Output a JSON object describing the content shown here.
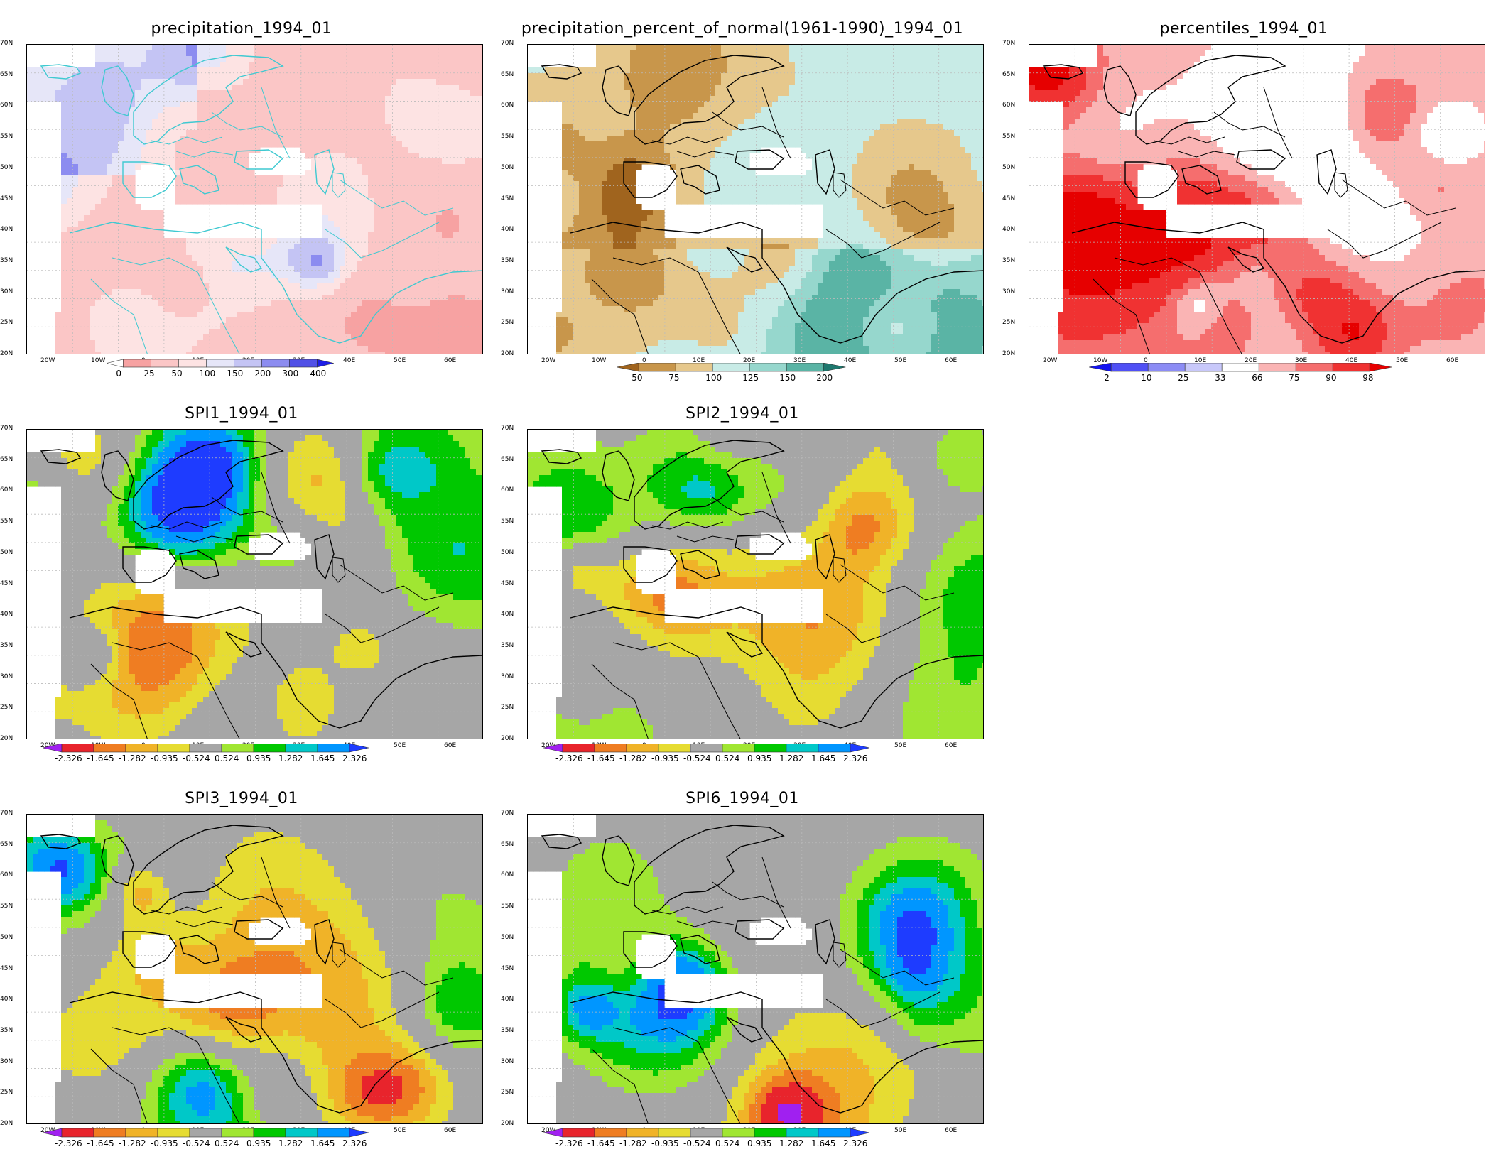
{
  "lat_labels": [
    "70N",
    "65N",
    "60N",
    "55N",
    "50N",
    "45N",
    "40N",
    "35N",
    "30N",
    "25N",
    "20N"
  ],
  "lon_labels": [
    "20W",
    "10W",
    "0",
    "10E",
    "20E",
    "30E",
    "40E",
    "50E",
    "60E"
  ],
  "spi_scale": {
    "labels": [
      "-2.326",
      "-1.645",
      "-1.282",
      "-0.935",
      "-0.524",
      "0.524",
      "0.935",
      "1.282",
      "1.645",
      "2.326"
    ],
    "colors": [
      "#a020f0",
      "#e8242c",
      "#ef7d22",
      "#f0b328",
      "#e6dc32",
      "#a6a6a6",
      "#a0e632",
      "#00c800",
      "#00c8c8",
      "#0096ff",
      "#1e3cff"
    ]
  },
  "panels": [
    {
      "id": "precip",
      "title": "precipitation_1994_01",
      "colorbar": {
        "labels": [
          "0",
          "25",
          "50",
          "100",
          "150",
          "200",
          "300",
          "400"
        ],
        "colors": [
          "#ffffff",
          "#f7a2a2",
          "#fbc6c6",
          "#fde3e3",
          "#e6e6f8",
          "#c4c4f4",
          "#8c8cf0",
          "#5050e6",
          "#1e1ee6"
        ]
      }
    },
    {
      "id": "pct",
      "title": "precipitation_percent_of_normal(1961-1990)_1994_01",
      "colorbar": {
        "labels": [
          "50",
          "75",
          "100",
          "125",
          "150",
          "200"
        ],
        "colors": [
          "#a0641e",
          "#c8964b",
          "#e6c88c",
          "#c8ebe6",
          "#96d7cd",
          "#5ab4a5",
          "#1e786e"
        ]
      }
    },
    {
      "id": "perc",
      "title": "percentiles_1994_01",
      "colorbar": {
        "labels": [
          "2",
          "10",
          "25",
          "33",
          "66",
          "75",
          "90",
          "98"
        ],
        "colors": [
          "#1414f0",
          "#5050f5",
          "#8c8cf5",
          "#c8c8fa",
          "#ffffff",
          "#fab4b4",
          "#f56e6e",
          "#f03232",
          "#e60000"
        ]
      }
    },
    {
      "id": "spi1",
      "title": "SPI1_1994_01"
    },
    {
      "id": "spi2",
      "title": "SPI2_1994_01"
    },
    {
      "id": "spi3",
      "title": "SPI3_1994_01"
    },
    {
      "id": "spi6",
      "title": "SPI6_1994_01"
    }
  ]
}
